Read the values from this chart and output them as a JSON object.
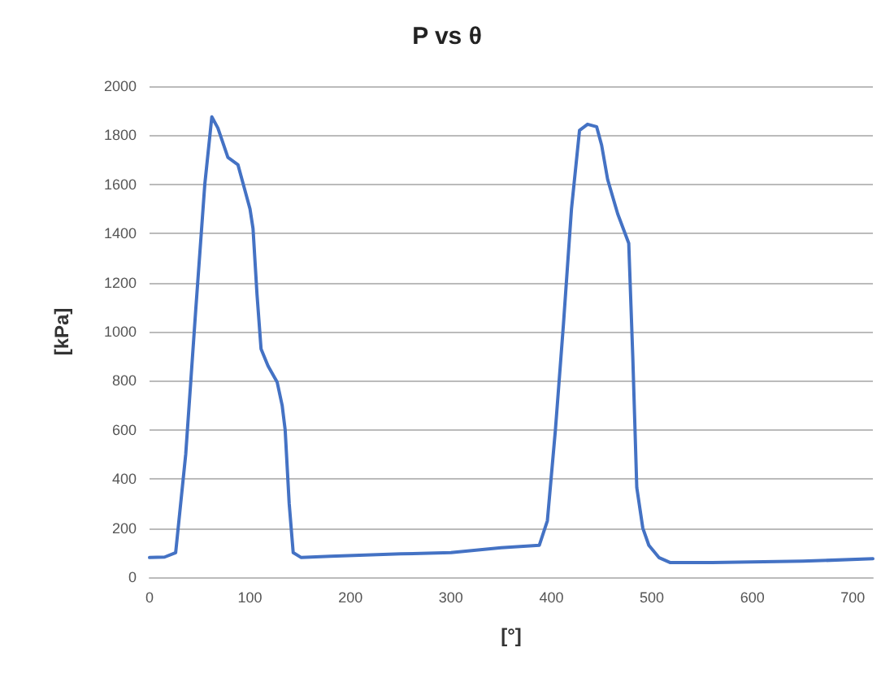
{
  "chart_data": {
    "type": "line",
    "title": "P vs θ",
    "xlabel": "[°]",
    "ylabel": "[kPa]",
    "x": [
      0,
      15,
      26,
      36,
      46,
      55,
      62,
      68,
      78,
      88,
      94,
      100,
      103,
      107,
      111,
      118,
      127,
      132,
      135,
      139,
      143,
      151,
      180,
      250,
      300,
      350,
      388,
      396,
      404,
      412,
      420,
      428,
      436,
      445,
      450,
      456,
      466,
      477,
      481,
      485,
      491,
      497,
      507,
      518,
      560,
      650,
      720
    ],
    "series": [
      {
        "color": "#4472c4",
        "values": [
          80,
          82,
          100,
          500,
          1090,
          1600,
          1875,
          1830,
          1710,
          1680,
          1590,
          1500,
          1420,
          1150,
          930,
          860,
          795,
          700,
          600,
          300,
          100,
          80,
          85,
          95,
          100,
          120,
          130,
          230,
          600,
          1030,
          1500,
          1820,
          1845,
          1835,
          1760,
          1620,
          1480,
          1360,
          900,
          365,
          200,
          130,
          80,
          60,
          60,
          65,
          75
        ]
      }
    ],
    "xlim": [
      0,
      720
    ],
    "xticks": [
      0,
      100,
      200,
      300,
      400,
      500,
      600,
      700
    ],
    "ylim": [
      0,
      2000
    ],
    "yticks": [
      0,
      200,
      400,
      600,
      800,
      1000,
      1200,
      1400,
      1600,
      1800,
      2000
    ],
    "grid": "y",
    "marker": "none",
    "line_style": "solid"
  }
}
